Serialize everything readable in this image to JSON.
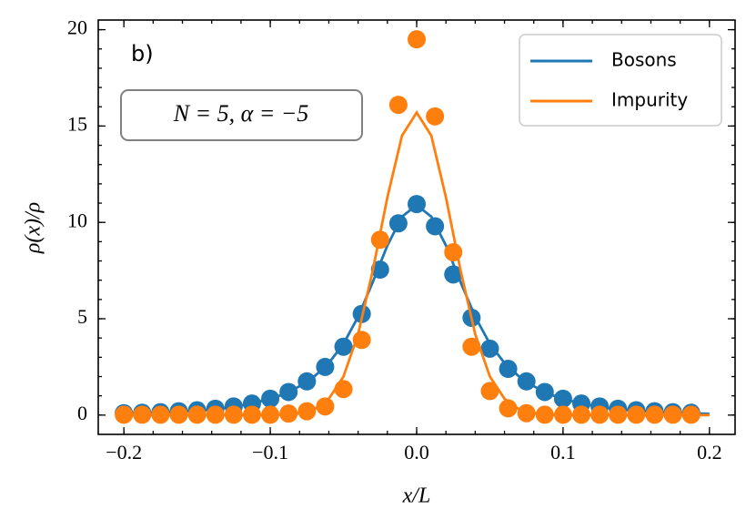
{
  "chart_data": {
    "type": "line",
    "annotations": [
      "b)",
      "N = 5, α = −5"
    ],
    "xlabel": "x/L",
    "ylabel": "ρ(x)/ρ",
    "xlim": [
      -0.2175,
      0.2175
    ],
    "ylim": [
      -1,
      20.5
    ],
    "xticks": [
      {
        "value": -0.2,
        "label": "−0.2"
      },
      {
        "value": -0.1,
        "label": "−0.1"
      },
      {
        "value": 0,
        "label": "0.0"
      },
      {
        "value": 0.1,
        "label": "0.1"
      },
      {
        "value": 0.2,
        "label": "0.2"
      }
    ],
    "yticks": [
      0,
      5,
      10,
      15,
      20
    ],
    "xminorticks": [
      -0.2,
      -0.18,
      -0.16,
      -0.14,
      -0.12,
      -0.1,
      -0.08,
      -0.06,
      -0.04,
      -0.02,
      0,
      0.02,
      0.04,
      0.06,
      0.08,
      0.1,
      0.12,
      0.14,
      0.16,
      0.18,
      0.2
    ],
    "yminorticks": [
      0,
      1,
      2,
      3,
      4,
      5,
      6,
      7,
      8,
      9,
      10,
      11,
      12,
      13,
      14,
      15,
      16,
      17,
      18,
      19,
      20
    ],
    "legend": "upper right",
    "series": [
      {
        "name": "Bosons",
        "color": "#1f77b4",
        "x": [
          -0.2,
          -0.19,
          -0.18,
          -0.17,
          -0.16,
          -0.15,
          -0.14,
          -0.13,
          -0.12,
          -0.11,
          -0.1,
          -0.09,
          -0.08,
          -0.07,
          -0.06,
          -0.05,
          -0.04,
          -0.03,
          -0.02,
          -0.01,
          0,
          0.01,
          0.02,
          0.03,
          0.04,
          0.05,
          0.06,
          0.07,
          0.08,
          0.09,
          0.1,
          0.11,
          0.12,
          0.13,
          0.14,
          0.15,
          0.16,
          0.17,
          0.18,
          0.19,
          0.2
        ],
        "values": [
          0.07,
          0.09,
          0.11,
          0.14,
          0.18,
          0.23,
          0.3,
          0.38,
          0.5,
          0.65,
          0.85,
          1.1,
          1.5,
          2.0,
          2.7,
          3.7,
          5.1,
          6.9,
          8.8,
          10.3,
          10.9,
          10.3,
          8.8,
          6.9,
          5.1,
          3.7,
          2.7,
          2.0,
          1.5,
          1.1,
          0.85,
          0.65,
          0.5,
          0.38,
          0.3,
          0.23,
          0.18,
          0.14,
          0.11,
          0.09,
          0.07
        ],
        "markers": {
          "x": [
            -0.2,
            -0.1875,
            -0.175,
            -0.1625,
            -0.15,
            -0.1375,
            -0.125,
            -0.1125,
            -0.1,
            -0.0875,
            -0.075,
            -0.0625,
            -0.05,
            -0.0375,
            -0.025,
            -0.0125,
            0,
            0.0125,
            0.025,
            0.0375,
            0.05,
            0.0625,
            0.075,
            0.0875,
            0.1,
            0.1125,
            0.125,
            0.1375,
            0.15,
            0.1625,
            0.175,
            0.1875
          ],
          "values": [
            0.1,
            0.12,
            0.15,
            0.2,
            0.25,
            0.33,
            0.45,
            0.6,
            0.85,
            1.2,
            1.75,
            2.5,
            3.55,
            5.25,
            7.55,
            9.95,
            10.95,
            9.8,
            7.3,
            5.05,
            3.45,
            2.4,
            1.75,
            1.2,
            0.85,
            0.6,
            0.45,
            0.33,
            0.25,
            0.2,
            0.15,
            0.12
          ]
        }
      },
      {
        "name": "Impurity",
        "color": "#ff7f0e",
        "x": [
          -0.2,
          -0.19,
          -0.18,
          -0.17,
          -0.16,
          -0.15,
          -0.14,
          -0.13,
          -0.12,
          -0.11,
          -0.1,
          -0.09,
          -0.08,
          -0.07,
          -0.06,
          -0.05,
          -0.04,
          -0.03,
          -0.02,
          -0.01,
          0,
          0.01,
          0.02,
          0.03,
          0.04,
          0.05,
          0.06,
          0.07,
          0.08,
          0.09,
          0.1,
          0.11,
          0.12,
          0.13,
          0.14,
          0.15,
          0.16,
          0.17,
          0.18,
          0.19,
          0.2
        ],
        "values": [
          0,
          0,
          0,
          0,
          0,
          0,
          0,
          0,
          0,
          0,
          0,
          0.03,
          0.1,
          0.3,
          0.85,
          2.0,
          4.2,
          7.5,
          11.3,
          14.5,
          15.7,
          14.5,
          11.3,
          7.5,
          4.2,
          2.0,
          0.85,
          0.3,
          0.1,
          0.03,
          0,
          0,
          0,
          0,
          0,
          0,
          0,
          0,
          0,
          0,
          0
        ],
        "markers": {
          "x": [
            -0.2,
            -0.1875,
            -0.175,
            -0.1625,
            -0.15,
            -0.1375,
            -0.125,
            -0.1125,
            -0.1,
            -0.0875,
            -0.075,
            -0.0625,
            -0.05,
            -0.0375,
            -0.025,
            -0.0125,
            0,
            0.0125,
            0.025,
            0.0375,
            0.05,
            0.0625,
            0.075,
            0.0875,
            0.1,
            0.1125,
            0.125,
            0.1375,
            0.15,
            0.1625,
            0.175,
            0.1875
          ],
          "values": [
            0.02,
            0.02,
            0.02,
            0.02,
            0.02,
            0.02,
            0.02,
            0.02,
            0.02,
            0.08,
            0.2,
            0.45,
            1.35,
            3.9,
            9.1,
            16.1,
            19.5,
            15.5,
            8.45,
            3.55,
            1.25,
            0.35,
            0.1,
            0.02,
            0.02,
            0.02,
            0.02,
            0.02,
            0.02,
            0.02,
            0.02,
            0.02
          ]
        }
      }
    ]
  }
}
